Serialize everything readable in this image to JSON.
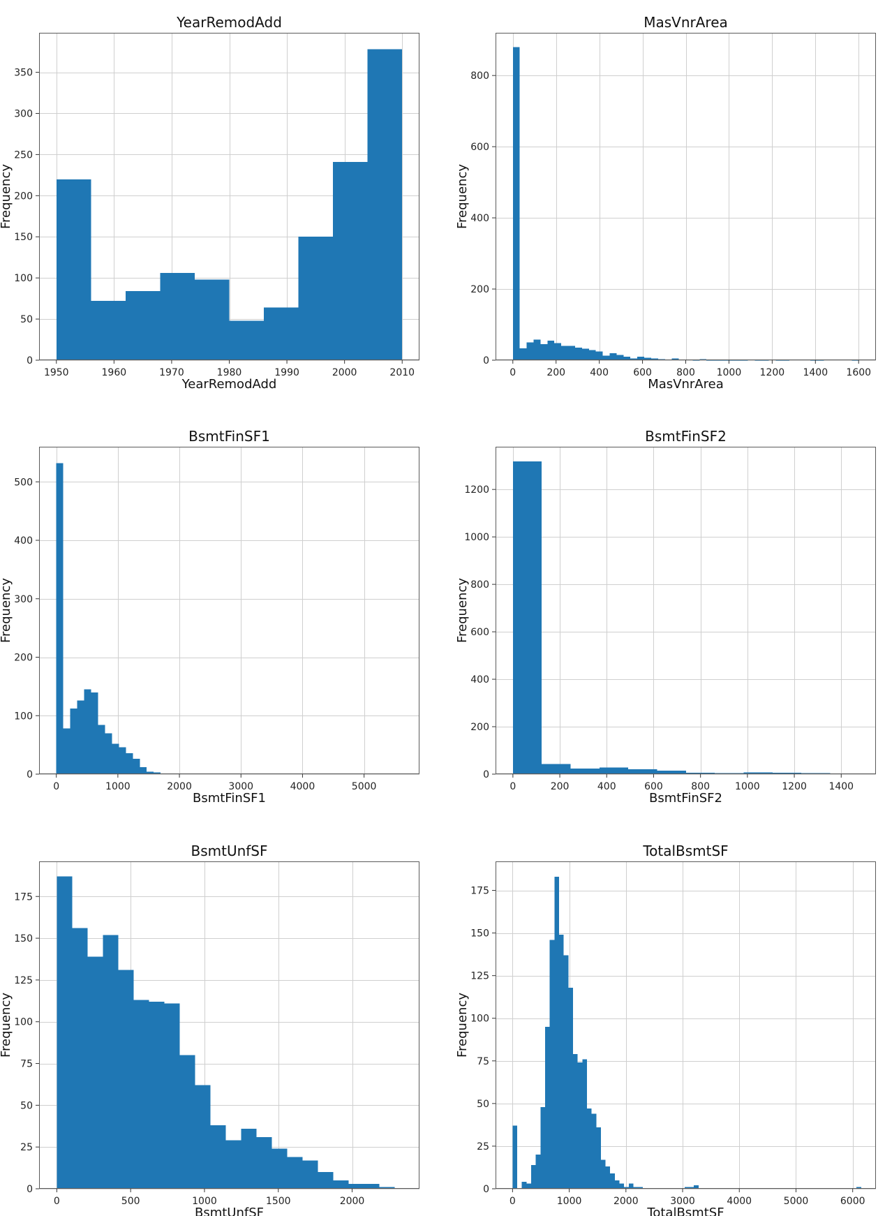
{
  "figure": {
    "color": "#1f77b4"
  },
  "chart_data": [
    {
      "type": "bar",
      "title": "YearRemodAdd",
      "xlabel": "YearRemodAdd",
      "ylabel": "Frequency",
      "grid": true,
      "xlim": [
        1947,
        2013
      ],
      "ylim": [
        0,
        398
      ],
      "xticks": [
        "1950",
        "1960",
        "1970",
        "1980",
        "1990",
        "2000",
        "2010"
      ],
      "xtick_values": [
        1950,
        1960,
        1970,
        1980,
        1990,
        2000,
        2010
      ],
      "yticks": [
        "0",
        "50",
        "100",
        "150",
        "200",
        "250",
        "300",
        "350"
      ],
      "ytick_values": [
        0,
        50,
        100,
        150,
        200,
        250,
        300,
        350
      ],
      "bins": {
        "start": 1950,
        "width": 6,
        "values": [
          220,
          72,
          84,
          106,
          98,
          48,
          64,
          150,
          241,
          378
        ]
      }
    },
    {
      "type": "bar",
      "title": "MasVnrArea",
      "xlabel": "MasVnrArea",
      "ylabel": "Frequency",
      "grid": true,
      "xlim": [
        -80,
        1680
      ],
      "ylim": [
        0,
        920
      ],
      "xticks": [
        "0",
        "200",
        "400",
        "600",
        "800",
        "1000",
        "1200",
        "1400",
        "1600"
      ],
      "xtick_values": [
        0,
        200,
        400,
        600,
        800,
        1000,
        1200,
        1400,
        1600
      ],
      "yticks": [
        "0",
        "200",
        "400",
        "600",
        "800"
      ],
      "ytick_values": [
        0,
        200,
        400,
        600,
        800
      ],
      "bins": {
        "start": 0,
        "width": 32,
        "values": [
          880,
          33,
          50,
          58,
          45,
          55,
          48,
          40,
          40,
          35,
          32,
          28,
          25,
          13,
          20,
          15,
          10,
          5,
          10,
          7,
          5,
          3,
          2,
          5,
          2,
          2,
          1,
          3,
          1,
          1,
          1,
          1,
          1,
          1,
          0,
          1,
          1,
          0,
          1,
          1,
          0,
          0,
          0,
          1,
          1,
          0,
          0,
          0,
          0,
          1
        ]
      }
    },
    {
      "type": "bar",
      "title": "BsmtFinSF1",
      "xlabel": "BsmtFinSF1",
      "ylabel": "Frequency",
      "grid": true,
      "xlim": [
        -280,
        5900
      ],
      "ylim": [
        0,
        560
      ],
      "xticks": [
        "0",
        "1000",
        "2000",
        "3000",
        "4000",
        "5000"
      ],
      "xtick_values": [
        0,
        1000,
        2000,
        3000,
        4000,
        5000
      ],
      "yticks": [
        "0",
        "100",
        "200",
        "300",
        "400",
        "500"
      ],
      "ytick_values": [
        0,
        100,
        200,
        300,
        400,
        500
      ],
      "bins": {
        "start": 0,
        "width": 113,
        "values": [
          532,
          78,
          112,
          126,
          145,
          140,
          84,
          70,
          52,
          46,
          36,
          26,
          12,
          4,
          3,
          1,
          1,
          1,
          1,
          1,
          0,
          0,
          0,
          0,
          0,
          0,
          0,
          0,
          0,
          0,
          0,
          0,
          0,
          0,
          0,
          0,
          0,
          0,
          0,
          0,
          0,
          0,
          0,
          0,
          0,
          0,
          0,
          0,
          0,
          1
        ]
      }
    },
    {
      "type": "bar",
      "title": "BsmtFinSF2",
      "xlabel": "BsmtFinSF2",
      "ylabel": "Frequency",
      "grid": true,
      "xlim": [
        -74,
        1548
      ],
      "ylim": [
        0,
        1380
      ],
      "xticks": [
        "0",
        "200",
        "400",
        "600",
        "800",
        "1000",
        "1200",
        "1400"
      ],
      "xtick_values": [
        0,
        200,
        400,
        600,
        800,
        1000,
        1200,
        1400
      ],
      "yticks": [
        "0",
        "200",
        "400",
        "600",
        "800",
        "1000",
        "1200"
      ],
      "ytick_values": [
        0,
        200,
        400,
        600,
        800,
        1000,
        1200
      ],
      "bins": {
        "start": 0,
        "width": 123,
        "values": [
          1318,
          42,
          23,
          28,
          21,
          15,
          6,
          4,
          8,
          6,
          4,
          2
        ]
      }
    },
    {
      "type": "bar",
      "title": "BsmtUnfSF",
      "xlabel": "BsmtUnfSF",
      "ylabel": "Frequency",
      "grid": true,
      "xlim": [
        -120,
        2456
      ],
      "ylim": [
        0,
        196
      ],
      "xticks": [
        "0",
        "500",
        "1000",
        "1500",
        "2000"
      ],
      "xtick_values": [
        0,
        500,
        1000,
        1500,
        2000
      ],
      "yticks": [
        "0",
        "25",
        "50",
        "75",
        "100",
        "125",
        "150",
        "175"
      ],
      "ytick_values": [
        0,
        25,
        50,
        75,
        100,
        125,
        150,
        175
      ],
      "bins": {
        "start": 0,
        "width": 104,
        "values": [
          187,
          156,
          139,
          152,
          131,
          113,
          112,
          111,
          80,
          62,
          38,
          29,
          36,
          31,
          24,
          19,
          17,
          10,
          5,
          3,
          3,
          1
        ]
      }
    },
    {
      "type": "bar",
      "title": "TotalBsmtSF",
      "xlabel": "TotalBsmtSF",
      "ylabel": "Frequency",
      "grid": true,
      "xlim": [
        -300,
        6410
      ],
      "ylim": [
        0,
        192
      ],
      "xticks": [
        "0",
        "1000",
        "2000",
        "3000",
        "4000",
        "5000",
        "6000"
      ],
      "xtick_values": [
        0,
        1000,
        2000,
        3000,
        4000,
        5000,
        6000
      ],
      "yticks": [
        "0",
        "25",
        "50",
        "75",
        "100",
        "125",
        "150",
        "175"
      ],
      "ytick_values": [
        0,
        25,
        50,
        75,
        100,
        125,
        150,
        175
      ],
      "bins": {
        "start": 0,
        "width": 82,
        "values": [
          37,
          0,
          4,
          3,
          14,
          20,
          48,
          95,
          146,
          183,
          149,
          137,
          118,
          79,
          74,
          76,
          47,
          44,
          36,
          17,
          13,
          9,
          5,
          3,
          1,
          3,
          1,
          1,
          0,
          0,
          0,
          0,
          0,
          0,
          0,
          0,
          0,
          1,
          1,
          2,
          0,
          0,
          0,
          0,
          0,
          0,
          0,
          0,
          0,
          0,
          0,
          0,
          0,
          0,
          0,
          0,
          0,
          0,
          0,
          0,
          0,
          0,
          0,
          0,
          0,
          0,
          0,
          0,
          0,
          0,
          0,
          0,
          0,
          0,
          1
        ]
      }
    }
  ]
}
